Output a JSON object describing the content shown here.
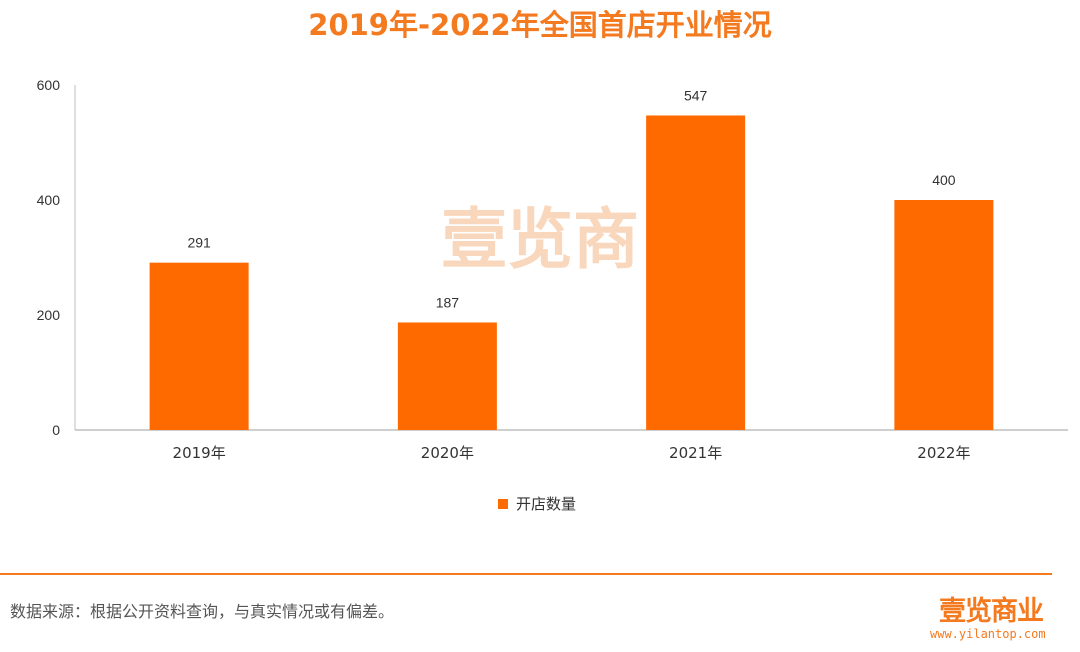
{
  "title": "2019年-2022年全国首店开业情况",
  "colors": {
    "accent": "#FF6A00",
    "title": "#F47A20",
    "axis": "#BFBFBF",
    "text": "#333333",
    "watermark": "#F9D7BD"
  },
  "chart_data": {
    "type": "bar",
    "categories": [
      "2019年",
      "2020年",
      "2021年",
      "2022年"
    ],
    "series": [
      {
        "name": "开店数量",
        "values": [
          291,
          187,
          547,
          400
        ]
      }
    ],
    "y_ticks": [
      "0",
      "200",
      "400",
      "600"
    ],
    "ylim": [
      0,
      600
    ],
    "legend_position": "bottom",
    "grid": false
  },
  "watermark": "壹览商",
  "footer": {
    "source": "数据来源：根据公开资料查询，与真实情况或有偏差。",
    "brand": "壹览商业",
    "url": "www.yilantop.com"
  }
}
